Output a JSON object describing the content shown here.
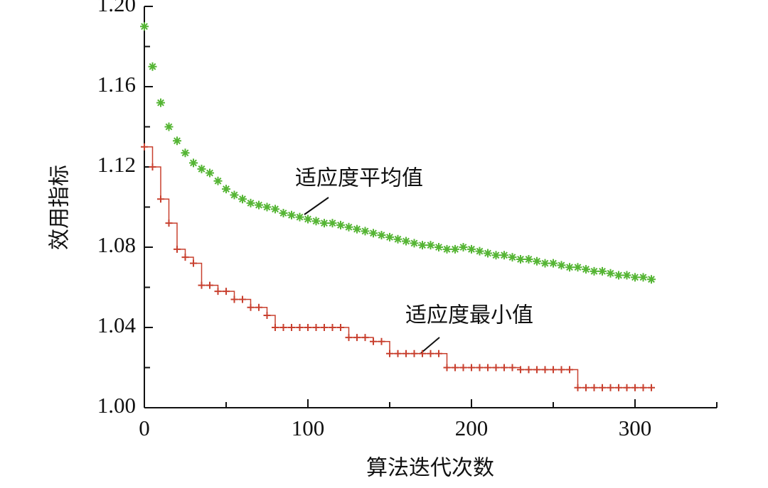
{
  "chart_data": {
    "type": "scatter",
    "xlabel": "算法迭代次数",
    "ylabel": "效用指标",
    "xlim": [
      0,
      350
    ],
    "ylim": [
      1.0,
      1.2
    ],
    "xticks": [
      0,
      100,
      200,
      300
    ],
    "xminorticks": [
      50,
      150,
      250,
      350
    ],
    "yticks": [
      {
        "value": 1.0,
        "label": "1.00"
      },
      1.04,
      1.08,
      1.12,
      1.16,
      {
        "value": 1.2,
        "label": "1.20"
      }
    ],
    "yminorticks": [
      1.02,
      1.06,
      1.1,
      1.14,
      1.18
    ],
    "x": [
      0,
      5,
      10,
      15,
      20,
      25,
      30,
      35,
      40,
      45,
      50,
      55,
      60,
      65,
      70,
      75,
      80,
      85,
      90,
      95,
      100,
      105,
      110,
      115,
      120,
      125,
      130,
      135,
      140,
      145,
      150,
      155,
      160,
      165,
      170,
      175,
      180,
      185,
      190,
      195,
      200,
      205,
      210,
      215,
      220,
      225,
      230,
      235,
      240,
      245,
      250,
      255,
      260,
      265,
      270,
      275,
      280,
      285,
      290,
      295,
      300,
      305,
      310
    ],
    "series": [
      {
        "name": "适应度平均值",
        "color": "#55b534",
        "marker": "star",
        "values": [
          1.19,
          1.17,
          1.152,
          1.14,
          1.133,
          1.127,
          1.122,
          1.119,
          1.117,
          1.113,
          1.109,
          1.106,
          1.104,
          1.102,
          1.101,
          1.1,
          1.099,
          1.097,
          1.096,
          1.095,
          1.094,
          1.093,
          1.092,
          1.092,
          1.091,
          1.09,
          1.089,
          1.088,
          1.087,
          1.086,
          1.085,
          1.084,
          1.083,
          1.082,
          1.081,
          1.081,
          1.08,
          1.079,
          1.079,
          1.08,
          1.079,
          1.078,
          1.077,
          1.076,
          1.076,
          1.075,
          1.074,
          1.074,
          1.073,
          1.072,
          1.072,
          1.071,
          1.07,
          1.07,
          1.069,
          1.068,
          1.068,
          1.067,
          1.066,
          1.066,
          1.065,
          1.065,
          1.064
        ]
      },
      {
        "name": "适应度最小值",
        "color": "#c8402f",
        "marker": "plus",
        "values": [
          1.13,
          1.12,
          1.104,
          1.092,
          1.079,
          1.075,
          1.072,
          1.061,
          1.061,
          1.058,
          1.058,
          1.054,
          1.054,
          1.05,
          1.05,
          1.046,
          1.04,
          1.04,
          1.04,
          1.04,
          1.04,
          1.04,
          1.04,
          1.04,
          1.04,
          1.035,
          1.035,
          1.035,
          1.033,
          1.033,
          1.027,
          1.027,
          1.027,
          1.027,
          1.027,
          1.027,
          1.027,
          1.02,
          1.02,
          1.02,
          1.02,
          1.02,
          1.02,
          1.02,
          1.02,
          1.02,
          1.019,
          1.019,
          1.019,
          1.019,
          1.019,
          1.019,
          1.019,
          1.01,
          1.01,
          1.01,
          1.01,
          1.01,
          1.01,
          1.01,
          1.01,
          1.01,
          1.01
        ]
      }
    ]
  }
}
